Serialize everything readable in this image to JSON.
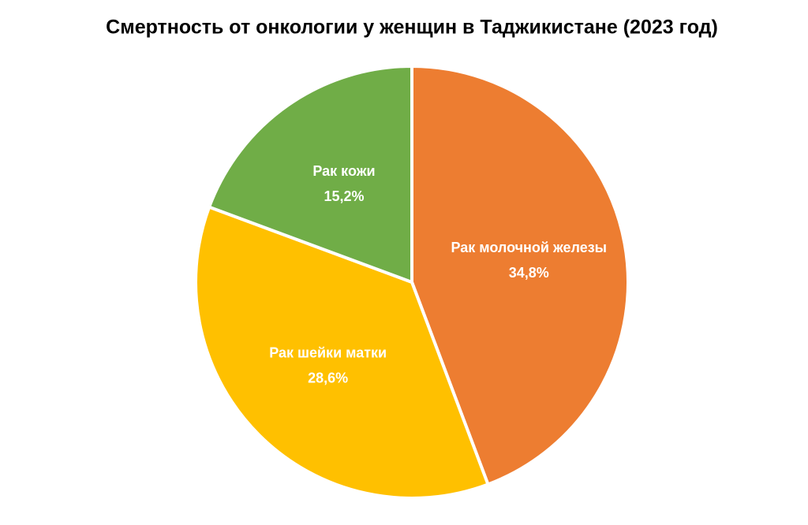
{
  "chart_data": {
    "type": "pie",
    "title": "Смертность от онкологии у женщин в Таджикистане (2023 год)",
    "categories": [
      "Рак молочной железы",
      "Рак шейки матки",
      "Рак кожи"
    ],
    "values": [
      34.8,
      28.6,
      15.2
    ],
    "value_labels": [
      "34,8%",
      "28,6%",
      "15,2%"
    ],
    "colors": [
      "#ed7d31",
      "#ffc000",
      "#70ad47"
    ]
  }
}
